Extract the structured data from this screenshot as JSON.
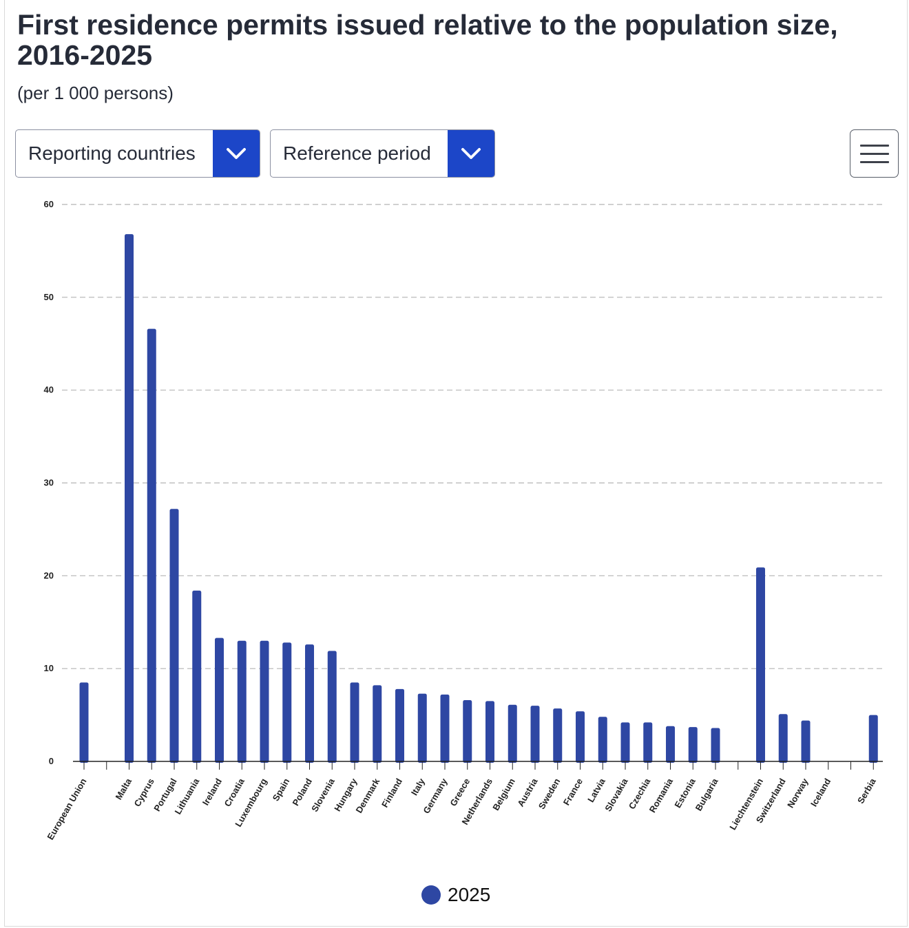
{
  "title": "First residence permits issued relative to the population size, 2016-2025",
  "subtitle": "(per 1 000 persons)",
  "controls": {
    "reporting_countries": "Reporting countries",
    "reference_period": "Reference period"
  },
  "icons": {
    "dropdown": "chevron-down-icon",
    "menu": "hamburger-menu-icon"
  },
  "colors": {
    "accent": "#1c46c8",
    "bar": "#2e47a3",
    "grid": "#b4b4b4",
    "text": "#262b38"
  },
  "chart_data": {
    "type": "bar",
    "categories": [
      "European Union",
      "",
      "Malta",
      "Cyprus",
      "Portugal",
      "Lithuania",
      "Ireland",
      "Croatia",
      "Luxembourg",
      "Spain",
      "Poland",
      "Slovenia",
      "Hungary",
      "Denmark",
      "Finland",
      "Italy",
      "Germany",
      "Greece",
      "Netherlands",
      "Belgium",
      "Austria",
      "Sweden",
      "France",
      "Latvia",
      "Slovakia",
      "Czechia",
      "Romania",
      "Estonia",
      "Bulgaria",
      "",
      "Liechtenstein",
      "Switzerland",
      "Norway",
      "Iceland",
      "",
      "Serbia"
    ],
    "series": [
      {
        "name": "2025",
        "values": [
          8.5,
          null,
          56.8,
          46.6,
          27.2,
          18.4,
          13.3,
          13.0,
          13.0,
          12.8,
          12.6,
          11.9,
          8.5,
          8.2,
          7.8,
          7.3,
          7.2,
          6.6,
          6.5,
          6.1,
          6.0,
          5.7,
          5.4,
          4.8,
          4.2,
          4.2,
          3.8,
          3.7,
          3.6,
          null,
          20.9,
          5.1,
          4.4,
          null,
          null,
          5.0
        ]
      }
    ],
    "yticks": [
      0,
      10,
      20,
      30,
      40,
      50,
      60
    ],
    "ylim": [
      0,
      60
    ],
    "grid": true,
    "legend_position": "bottom-center"
  }
}
